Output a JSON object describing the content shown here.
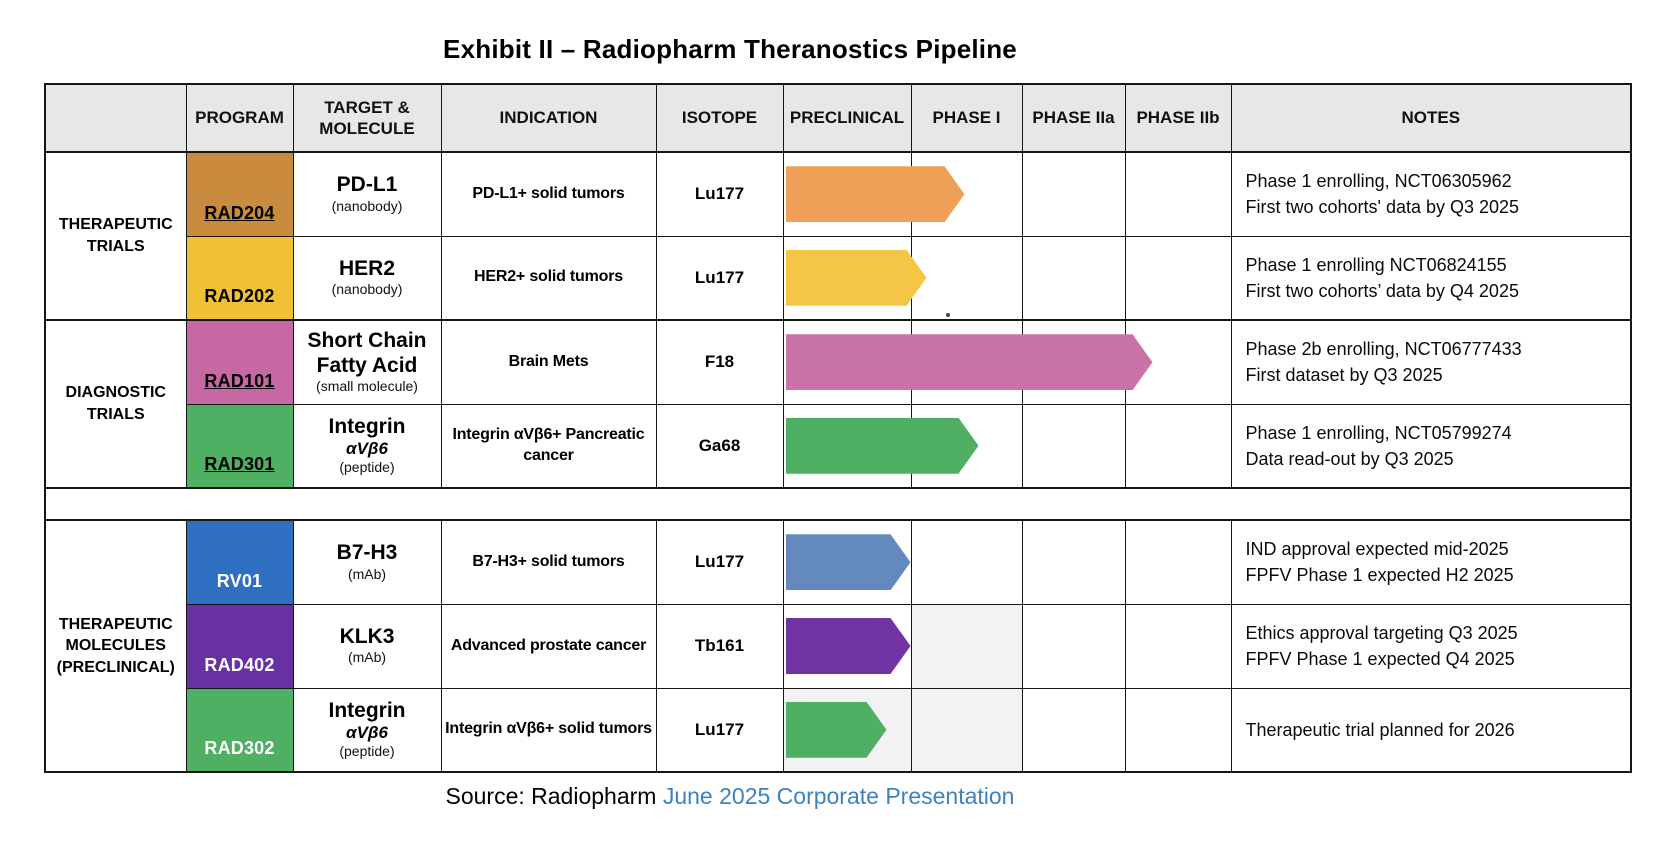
{
  "title": "Exhibit II – Radiopharm Theranostics Pipeline",
  "header": {
    "group": "",
    "program": "PROGRAM",
    "target": "TARGET & MOLECULE",
    "indication": "INDICATION",
    "isotope": "ISOTOPE",
    "phases": [
      "PRECLINICAL",
      "PHASE I",
      "PHASE IIa",
      "PHASE IIb"
    ],
    "notes": "NOTES"
  },
  "groups": [
    {
      "label": "THERAPEUTIC TRIALS"
    },
    {
      "label": "DIAGNOSTIC TRIALS"
    },
    {
      "label": "THERAPEUTIC MOLECULES (PRECLINICAL)"
    }
  ],
  "rows": [
    {
      "group_index": 0,
      "group_start": true,
      "group_span": 2,
      "program": "RAD204",
      "program_bg": "#C98B3E",
      "program_fg": "#000000",
      "underline": true,
      "target_lines": [
        {
          "style": "main",
          "text": "PD-L1"
        },
        {
          "style": "sub",
          "text": "(nanobody)"
        }
      ],
      "indication": "PD-L1+ solid tumors",
      "isotope": "Lu177",
      "arrow": {
        "color": "#EFA057",
        "track_pct": 40
      },
      "shaded_phases": [],
      "notes": [
        "Phase 1 enrolling, NCT06305962",
        "First two cohorts' data by Q3 2025"
      ]
    },
    {
      "group_index": 0,
      "program": "RAD202",
      "program_bg": "#F0C135",
      "program_fg": "#000000",
      "underline": false,
      "target_lines": [
        {
          "style": "main",
          "text": "HER2"
        },
        {
          "style": "sub",
          "text": "(nanobody)"
        }
      ],
      "indication": "HER2+ solid tumors",
      "isotope": "Lu177",
      "arrow": {
        "color": "#F5C645",
        "track_pct": 31.5
      },
      "shaded_phases": [],
      "stray_mark": true,
      "notes": [
        "Phase 1 enrolling NCT06824155",
        "First two cohorts’ data by Q4 2025"
      ]
    },
    {
      "section_start": true,
      "group_index": 1,
      "group_start": true,
      "group_span": 2,
      "program": "RAD101",
      "program_bg": "#C668A4",
      "program_fg": "#000000",
      "underline": true,
      "target_lines": [
        {
          "style": "main",
          "text": "Short Chain"
        },
        {
          "style": "main",
          "text": "Fatty Acid"
        },
        {
          "style": "sub",
          "text": "(small molecule)"
        }
      ],
      "indication": "Brain Mets",
      "isotope": "F18",
      "arrow": {
        "color": "#C973A8",
        "track_pct": 82
      },
      "shaded_phases": [],
      "notes": [
        "Phase 2b enrolling, NCT06777433",
        "First dataset by Q3 2025"
      ]
    },
    {
      "group_index": 1,
      "program": "RAD301",
      "program_bg": "#4FAF63",
      "program_fg": "#000000",
      "underline": true,
      "target_lines": [
        {
          "style": "main",
          "text": "Integrin"
        },
        {
          "style": "italic",
          "text": "αVβ6"
        },
        {
          "style": "sub",
          "text": "(peptide)"
        }
      ],
      "indication": "Integrin αVβ6+ Pancreatic cancer",
      "isotope": "Ga68",
      "arrow": {
        "color": "#4FAF63",
        "track_pct": 43
      },
      "shaded_phases": [],
      "notes": [
        "Phase 1 enrolling, NCT05799274",
        "Data read-out by Q3 2025"
      ]
    },
    {
      "type": "spacer"
    },
    {
      "section_start": true,
      "group_index": 2,
      "group_start": true,
      "group_span": 3,
      "program": "RV01",
      "program_bg": "#2F6FC1",
      "program_fg": "#FFFFFF",
      "underline": false,
      "target_lines": [
        {
          "style": "main",
          "text": "B7-H3"
        },
        {
          "style": "sub",
          "text": "(mAb)"
        }
      ],
      "indication": "B7-H3+ solid tumors",
      "isotope": "Lu177",
      "arrow": {
        "color": "#6389BF",
        "track_pct": 28
      },
      "shaded_phases": [],
      "notes": [
        "IND approval expected mid-2025",
        "FPFV Phase 1 expected H2 2025"
      ]
    },
    {
      "group_index": 2,
      "program": "RAD402",
      "program_bg": "#6831A1",
      "program_fg": "#FFFFFF",
      "underline": false,
      "target_lines": [
        {
          "style": "main",
          "text": "KLK3"
        },
        {
          "style": "sub",
          "text": "(mAb)"
        }
      ],
      "indication": "Advanced prostate cancer",
      "isotope": "Tb161",
      "arrow": {
        "color": "#7233A4",
        "track_pct": 28
      },
      "shaded_phases": [
        1
      ],
      "notes": [
        "Ethics approval targeting Q3 2025",
        "FPFV Phase 1 expected Q4 2025"
      ]
    },
    {
      "group_index": 2,
      "program": "RAD302",
      "program_bg": "#4FAF63",
      "program_fg": "#FFFFFF",
      "underline": false,
      "target_lines": [
        {
          "style": "main",
          "text": "Integrin"
        },
        {
          "style": "italic",
          "text": "αVβ6"
        },
        {
          "style": "sub",
          "text": "(peptide)"
        }
      ],
      "indication": "Integrin αVβ6+ solid tumors",
      "isotope": "Lu177",
      "arrow": {
        "color": "#4FAF63",
        "track_pct": 22.5
      },
      "shaded_phases": [
        0,
        1
      ],
      "notes": [
        "Therapeutic trial planned for 2026"
      ]
    }
  ],
  "source": {
    "prefix": "Source: Radiopharm",
    "link": "June 2025 Corporate Presentation",
    "link_color": "#3B82C4"
  }
}
